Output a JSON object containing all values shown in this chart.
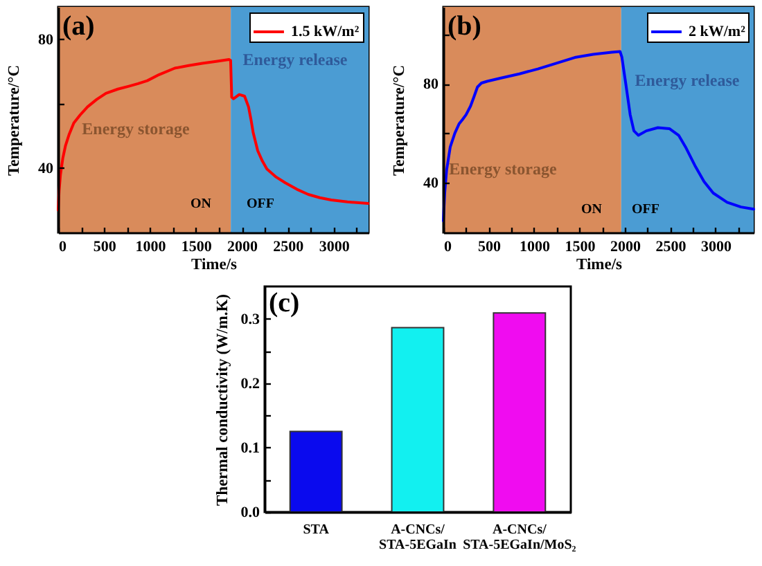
{
  "chart_data": [
    {
      "type": "line",
      "title": "(a)",
      "xlabel": "Time/s",
      "ylabel": "Temperature/°C",
      "x": [
        0,
        10,
        25,
        50,
        80,
        120,
        170,
        240,
        320,
        420,
        520,
        650,
        770,
        870,
        970,
        1100,
        1270,
        1420,
        1570,
        1720,
        1860,
        1878,
        1890,
        1910,
        1972,
        2030,
        2073,
        2100,
        2123,
        2173,
        2223,
        2273,
        2374,
        2474,
        2600,
        2724,
        2850,
        2974,
        3150,
        3375
      ],
      "series": [
        {
          "name": "1.5 kW/m²",
          "color": "#ff0000",
          "values": [
            27,
            33,
            38,
            43,
            47,
            50.5,
            54,
            56.5,
            59,
            61.3,
            63.2,
            64.5,
            65.4,
            66.2,
            67.1,
            69,
            71,
            71.8,
            72.5,
            73.1,
            73.7,
            73.4,
            62,
            61.5,
            62.8,
            62.3,
            59,
            55,
            51.1,
            45.4,
            42.2,
            39.7,
            37.2,
            35.4,
            33.4,
            31.8,
            30.8,
            30.1,
            29.5,
            29
          ]
        }
      ],
      "xlim": [
        0,
        3380
      ],
      "ylim": [
        20,
        90
      ],
      "xticks": [
        0,
        {
          "value": 250,
          "label": null
        },
        500,
        {
          "value": 750,
          "label": null
        },
        1000,
        {
          "value": 1250,
          "label": null
        },
        1500,
        {
          "value": 1750,
          "label": null
        },
        2000,
        {
          "value": 2250,
          "label": null
        },
        2500,
        {
          "value": 2750,
          "label": null
        },
        3000,
        {
          "value": 3250,
          "label": null
        }
      ],
      "yticks": [
        40,
        {
          "value": 60,
          "label": null
        },
        80
      ],
      "bands": [
        {
          "axis": "x",
          "from": 0,
          "to": 1880,
          "color": "#d98b5b"
        },
        {
          "axis": "x",
          "from": 1880,
          "to": 3380,
          "color": "#4b9cd3"
        }
      ],
      "annotations": [
        "Energy storage",
        "Energy release",
        "ON",
        "OFF"
      ],
      "legend": "top right"
    },
    {
      "type": "line",
      "title": "(b)",
      "xlabel": "Time/s",
      "ylabel": "Temperature/°C",
      "x": [
        0,
        15,
        36,
        76,
        127,
        173,
        210,
        250,
        300,
        340,
        376,
        420,
        483,
        636,
        839,
        1042,
        1246,
        1449,
        1652,
        1856,
        1947,
        1967,
        2008,
        2059,
        2100,
        2150,
        2237,
        2364,
        2491,
        2593,
        2669,
        2771,
        2872,
        2974,
        3127,
        3279,
        3420
      ],
      "series": [
        {
          "name": "2 kW/m²",
          "color": "#0000ff",
          "values": [
            24.7,
            35.9,
            45.2,
            54.5,
            60.1,
            63.8,
            65.5,
            67.5,
            71,
            75,
            78.7,
            80.3,
            81,
            82.3,
            84,
            86,
            88.3,
            90.6,
            91.9,
            92.7,
            93,
            90.8,
            80.6,
            67.5,
            61,
            59.2,
            61,
            62.3,
            61.9,
            59.2,
            54.5,
            47.1,
            40.6,
            35.9,
            32.2,
            30.3,
            29.4
          ]
        }
      ],
      "xlim": [
        0,
        3420
      ],
      "ylim": [
        20,
        111
      ],
      "xticks": [
        0,
        {
          "value": 250,
          "label": null
        },
        500,
        {
          "value": 750,
          "label": null
        },
        1000,
        {
          "value": 1250,
          "label": null
        },
        1500,
        {
          "value": 1750,
          "label": null
        },
        2000,
        {
          "value": 2250,
          "label": null
        },
        2500,
        {
          "value": 2750,
          "label": null
        },
        3000,
        {
          "value": 3250,
          "label": null
        }
      ],
      "yticks": [
        40,
        {
          "value": 60,
          "label": null
        },
        80,
        {
          "value": 100,
          "label": null
        }
      ],
      "bands": [
        {
          "axis": "x",
          "from": 0,
          "to": 1960,
          "color": "#d98b5b"
        },
        {
          "axis": "x",
          "from": 1960,
          "to": 3420,
          "color": "#4b9cd3"
        }
      ],
      "annotations": [
        "Energy storage",
        "Energy release",
        "ON",
        "OFF"
      ],
      "legend": "top right"
    },
    {
      "type": "bar",
      "title": "(c)",
      "ylabel": "Thermal conductivity (W/m.K)",
      "categories": [
        "STA",
        "A-CNCs/\nSTA-5EGaIn",
        "A-CNCs/\nSTA-5EGaIn/MoS₂"
      ],
      "values": [
        0.125,
        0.286,
        0.309
      ],
      "colors": [
        "#0a0aee",
        "#12f0f0",
        "#f00cf0"
      ],
      "ylim": [
        0,
        0.35
      ],
      "yticks": [
        {
          "value": 0,
          "label": "0.0"
        },
        {
          "value": 0.05,
          "label": null
        },
        0.1,
        {
          "value": 0.15,
          "label": null
        },
        0.2,
        {
          "value": 0.25,
          "label": null
        },
        0.3
      ]
    }
  ]
}
